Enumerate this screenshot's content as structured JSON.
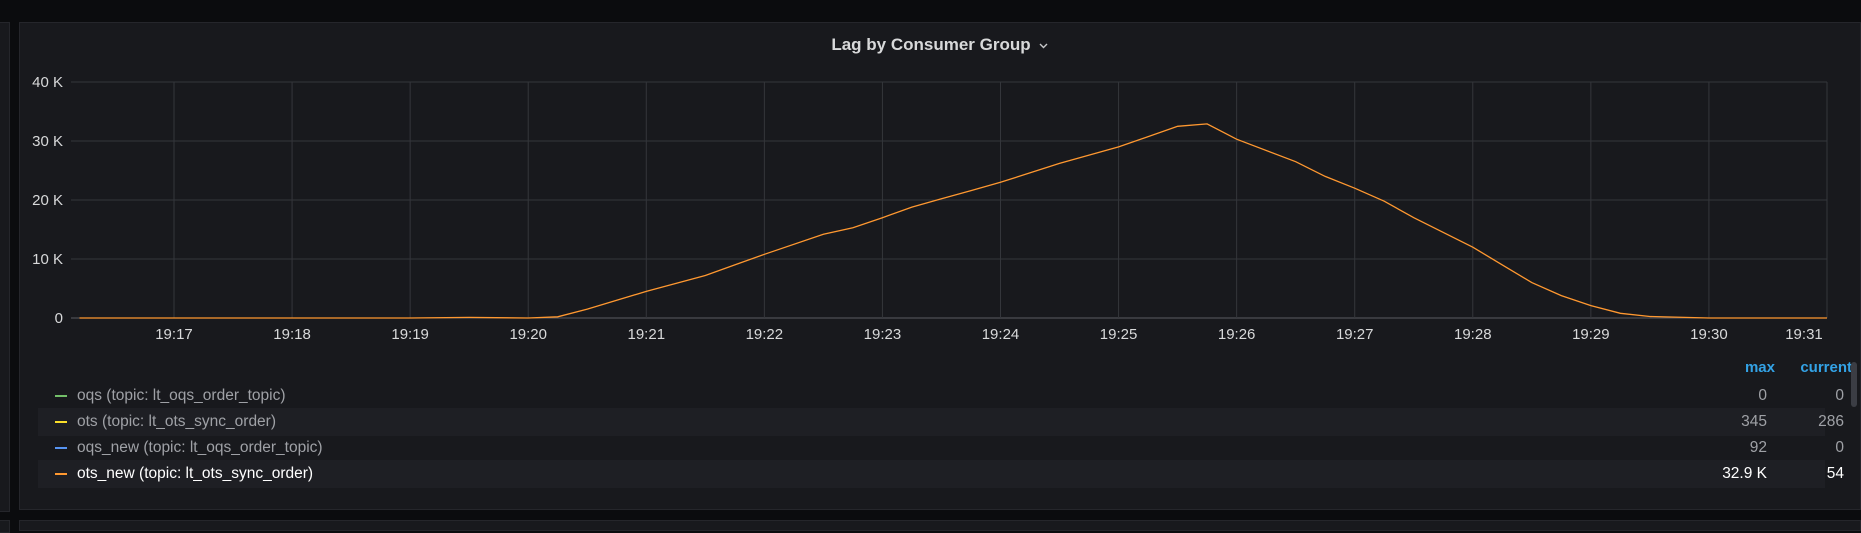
{
  "panel": {
    "title": "Lag by Consumer Group"
  },
  "legend": {
    "headers": {
      "max": "max",
      "current": "current"
    },
    "rows": [
      {
        "label": "oqs (topic: lt_oqs_order_topic)",
        "max": "0",
        "current": "0",
        "color": "#73bf69"
      },
      {
        "label": "ots (topic: lt_ots_sync_order)",
        "max": "345",
        "current": "286",
        "color": "#fade2a"
      },
      {
        "label": "oqs_new (topic: lt_oqs_order_topic)",
        "max": "92",
        "current": "0",
        "color": "#5794f2"
      },
      {
        "label": "ots_new (topic: lt_ots_sync_order)",
        "max": "32.9 K",
        "current": "54",
        "color": "#ff9830"
      }
    ]
  },
  "chart_data": {
    "type": "line",
    "grid": true,
    "x_ticks": [
      "19:17",
      "19:18",
      "19:19",
      "19:20",
      "19:21",
      "19:22",
      "19:23",
      "19:24",
      "19:25",
      "19:26",
      "19:27",
      "19:28",
      "19:29",
      "19:30",
      "19:31"
    ],
    "y_ticks": [
      "0",
      "10 K",
      "20 K",
      "30 K",
      "40 K"
    ],
    "ylim": [
      0,
      40000
    ],
    "series": [
      {
        "name": "ots_new (topic: lt_ots_sync_order)",
        "color": "#ff9830",
        "points": [
          [
            "19:16.2",
            0
          ],
          [
            "19:17.0",
            0
          ],
          [
            "19:18.0",
            0
          ],
          [
            "19:19.0",
            0
          ],
          [
            "19:19.5",
            100
          ],
          [
            "19:20.0",
            0
          ],
          [
            "19:20.25",
            200
          ],
          [
            "19:20.5",
            1500
          ],
          [
            "19:21.0",
            4500
          ],
          [
            "19:21.5",
            7200
          ],
          [
            "19:21.75",
            9000
          ],
          [
            "19:22.0",
            10800
          ],
          [
            "19:22.5",
            14200
          ],
          [
            "19:22.75",
            15300
          ],
          [
            "19:23.0",
            17000
          ],
          [
            "19:23.25",
            18800
          ],
          [
            "19:23.5",
            20200
          ],
          [
            "19:23.75",
            21600
          ],
          [
            "19:24.0",
            23000
          ],
          [
            "19:24.5",
            26200
          ],
          [
            "19:25.0",
            29000
          ],
          [
            "19:25.5",
            32500
          ],
          [
            "19:25.75",
            32900
          ],
          [
            "19:26.0",
            30300
          ],
          [
            "19:26.5",
            26500
          ],
          [
            "19:26.75",
            24000
          ],
          [
            "19:27.0",
            22000
          ],
          [
            "19:27.25",
            19800
          ],
          [
            "19:27.5",
            17000
          ],
          [
            "19:27.75",
            14500
          ],
          [
            "19:28.0",
            12000
          ],
          [
            "19:28.25",
            9000
          ],
          [
            "19:28.5",
            6000
          ],
          [
            "19:28.75",
            3800
          ],
          [
            "19:29.0",
            2100
          ],
          [
            "19:29.25",
            800
          ],
          [
            "19:29.5",
            250
          ],
          [
            "19:30.0",
            0
          ],
          [
            "19:31.0",
            0
          ]
        ]
      }
    ]
  }
}
